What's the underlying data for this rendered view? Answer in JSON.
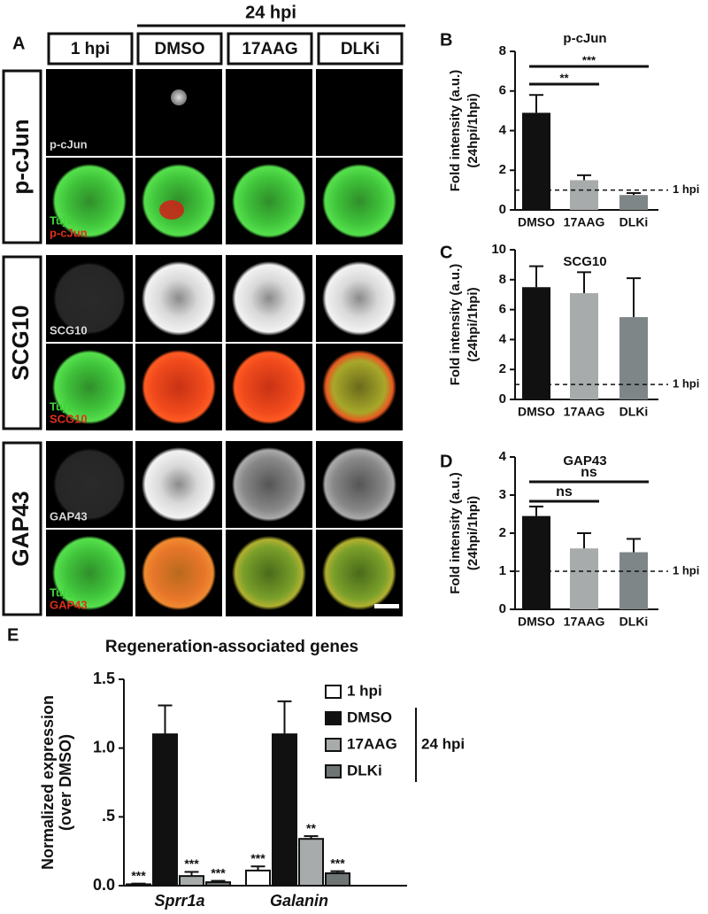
{
  "panel_a": {
    "letter": "A",
    "group_label": "24 hpi",
    "columns": [
      "1 hpi",
      "DMSO",
      "17AAG",
      "DLKi"
    ],
    "rows": [
      {
        "label": "p-cJun",
        "gray_channel": "p-cJun",
        "merge_channels": [
          "Tuj1",
          "p-cJun"
        ]
      },
      {
        "label": "SCG10",
        "gray_channel": "SCG10",
        "merge_channels": [
          "Tuj1",
          "SCG10"
        ]
      },
      {
        "label": "GAP43",
        "gray_channel": "GAP43",
        "merge_channels": [
          "Tuj1",
          "GAP43"
        ]
      }
    ]
  },
  "chart_data": [
    {
      "type": "bar",
      "letter": "B",
      "title": "p-cJun",
      "y_label": [
        "Fold intensity (a.u.)",
        "(24hpi/1hpi)"
      ],
      "categories": [
        "DMSO",
        "17AAG",
        "DLKi"
      ],
      "values": [
        4.9,
        1.5,
        0.75
      ],
      "errors": [
        0.9,
        0.25,
        0.1
      ],
      "colors": [
        "#111111",
        "#a8abab",
        "#7f8687"
      ],
      "ylim": [
        0,
        8
      ],
      "yticks": [
        0,
        2,
        4,
        6,
        8
      ],
      "reference": {
        "value": 1,
        "label": "1 hpi"
      },
      "comparisons": [
        {
          "pair": [
            "DMSO",
            "17AAG"
          ],
          "label": "**"
        },
        {
          "pair": [
            "DMSO",
            "DLKi"
          ],
          "label": "***"
        }
      ]
    },
    {
      "type": "bar",
      "letter": "C",
      "title": "SCG10",
      "y_label": [
        "Fold intensity (a.u.)",
        "(24hpi/1hpi)"
      ],
      "categories": [
        "DMSO",
        "17AAG",
        "DLKi"
      ],
      "values": [
        7.5,
        7.1,
        5.5
      ],
      "errors": [
        1.4,
        1.4,
        2.6
      ],
      "colors": [
        "#111111",
        "#a8abab",
        "#7f8687"
      ],
      "ylim": [
        0,
        10
      ],
      "yticks": [
        0,
        2,
        4,
        6,
        8,
        10
      ],
      "reference": {
        "value": 1,
        "label": "1 hpi"
      }
    },
    {
      "type": "bar",
      "letter": "D",
      "title": "GAP43",
      "y_label": [
        "Fold intensity (a.u.)",
        "(24hpi/1hpi)"
      ],
      "categories": [
        "DMSO",
        "17AAG",
        "DLKi"
      ],
      "values": [
        2.45,
        1.6,
        1.5
      ],
      "errors": [
        0.25,
        0.4,
        0.35
      ],
      "colors": [
        "#111111",
        "#a8abab",
        "#7f8687"
      ],
      "ylim": [
        0,
        4
      ],
      "yticks": [
        0,
        1,
        2,
        3,
        4
      ],
      "reference": {
        "value": 1,
        "label": "1 hpi"
      },
      "comparisons": [
        {
          "pair": [
            "DMSO",
            "17AAG"
          ],
          "label": "ns"
        },
        {
          "pair": [
            "DMSO",
            "DLKi"
          ],
          "label": "ns"
        }
      ]
    },
    {
      "type": "bar",
      "letter": "E",
      "title": "Regeneration-associated genes",
      "y_label": [
        "Normalized expression",
        "(over DMSO)"
      ],
      "categories": [
        "Sprr1a",
        "Galanin"
      ],
      "series": [
        {
          "name": "1 hpi",
          "color": "#ffffff",
          "values": [
            0.01,
            0.11
          ],
          "errors": [
            0.005,
            0.03
          ],
          "stars": [
            "***",
            "***"
          ]
        },
        {
          "name": "DMSO",
          "color": "#111111",
          "values": [
            1.1,
            1.1
          ],
          "errors": [
            0.21,
            0.24
          ]
        },
        {
          "name": "17AAG",
          "color": "#a8abab",
          "values": [
            0.07,
            0.34
          ],
          "errors": [
            0.03,
            0.02
          ],
          "stars": [
            "***",
            "**"
          ]
        },
        {
          "name": "DLKi",
          "color": "#6f7574",
          "values": [
            0.025,
            0.09
          ],
          "errors": [
            0.01,
            0.015
          ],
          "stars": [
            "***",
            "***"
          ]
        }
      ],
      "legend_group": {
        "label": "24 hpi",
        "members": [
          "DMSO",
          "17AAG",
          "DLKi"
        ]
      },
      "ylim": [
        0,
        1.5
      ],
      "yticks": [
        {
          "value": 0,
          "label": "0.0"
        },
        {
          "value": 0.5,
          "label": ".5"
        },
        {
          "value": 1,
          "label": "1.0"
        },
        {
          "value": 1.5,
          "label": "1.5"
        }
      ]
    }
  ]
}
